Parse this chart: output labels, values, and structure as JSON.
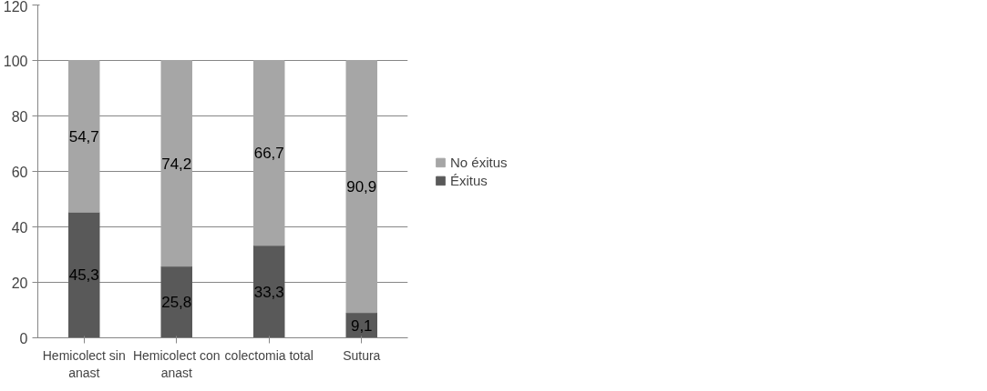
{
  "chart_data": {
    "type": "bar",
    "stacked": true,
    "categories": [
      "Hemicolect sin anast",
      "Hemicolect con anast",
      "colectomia total",
      "Sutura"
    ],
    "series": [
      {
        "name": "Éxitus",
        "color": "#595959",
        "values": [
          45.3,
          25.8,
          33.3,
          9.1
        ],
        "value_labels": [
          "45,3",
          "25,8",
          "33,3",
          "9,1"
        ]
      },
      {
        "name": "No éxitus",
        "color": "#a6a6a6",
        "values": [
          54.7,
          74.2,
          66.7,
          90.9
        ],
        "value_labels": [
          "54,7",
          "74,2",
          "66,7",
          "90,9"
        ]
      }
    ],
    "ylim": [
      0,
      120
    ],
    "yticks": [
      0,
      20,
      40,
      60,
      80,
      100,
      120
    ],
    "grid": "y",
    "legend": "right"
  }
}
